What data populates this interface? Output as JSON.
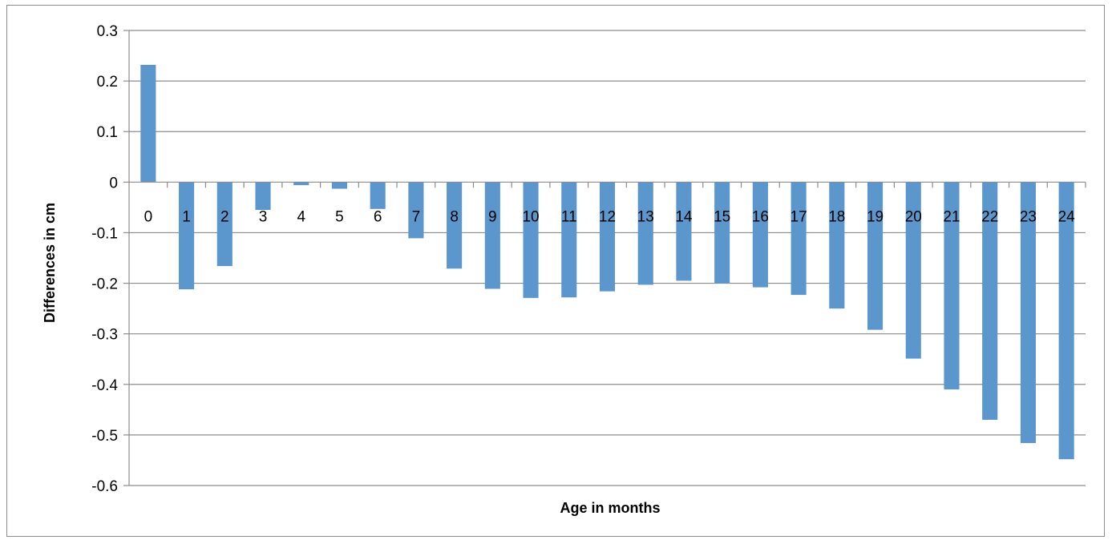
{
  "chart_data": {
    "type": "bar",
    "title": "",
    "xlabel": "Age in months",
    "ylabel": "Differences in cm",
    "ylim": [
      -0.6,
      0.3
    ],
    "yticks": [
      0.3,
      0.2,
      0.1,
      0,
      -0.1,
      -0.2,
      -0.3,
      -0.4,
      -0.5,
      -0.6
    ],
    "ytick_labels": [
      "0.3",
      "0.2",
      "0.1",
      "0",
      "-0.1",
      "-0.2",
      "-0.3",
      "-0.4",
      "-0.5",
      "-0.6"
    ],
    "grid": true,
    "legend": "none",
    "bar_color": "#5b96cc",
    "categories": [
      "0",
      "1",
      "2",
      "3",
      "4",
      "5",
      "6",
      "7",
      "8",
      "9",
      "10",
      "11",
      "12",
      "13",
      "14",
      "15",
      "16",
      "17",
      "18",
      "19",
      "20",
      "21",
      "22",
      "23",
      "24"
    ],
    "values": [
      0.232,
      -0.212,
      -0.166,
      -0.055,
      -0.006,
      -0.013,
      -0.053,
      -0.111,
      -0.171,
      -0.211,
      -0.229,
      -0.228,
      -0.216,
      -0.203,
      -0.195,
      -0.2,
      -0.208,
      -0.223,
      -0.25,
      -0.292,
      -0.349,
      -0.41,
      -0.47,
      -0.516,
      -0.548
    ]
  }
}
